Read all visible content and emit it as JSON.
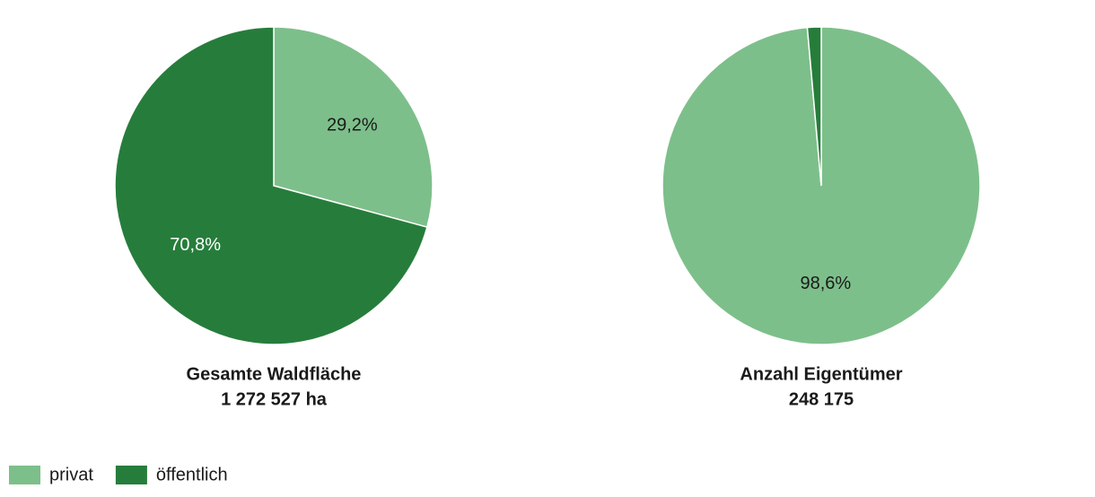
{
  "legend": {
    "items": [
      {
        "name": "privat",
        "color": "#7dbf8a"
      },
      {
        "name": "öffentlich",
        "color": "#267d3b"
      }
    ]
  },
  "chart_data": [
    {
      "type": "pie",
      "title": "Gesamte Waldfläche",
      "subtitle": "1 272 527 ha",
      "values": [
        29.2,
        70.8
      ],
      "value_labels": [
        "29,2%",
        "70,8%"
      ]
    },
    {
      "type": "pie",
      "title": "Anzahl Eigentümer",
      "subtitle": "248 175",
      "values": [
        98.6,
        1.4
      ],
      "value_labels": [
        "98,6%",
        null
      ]
    }
  ]
}
